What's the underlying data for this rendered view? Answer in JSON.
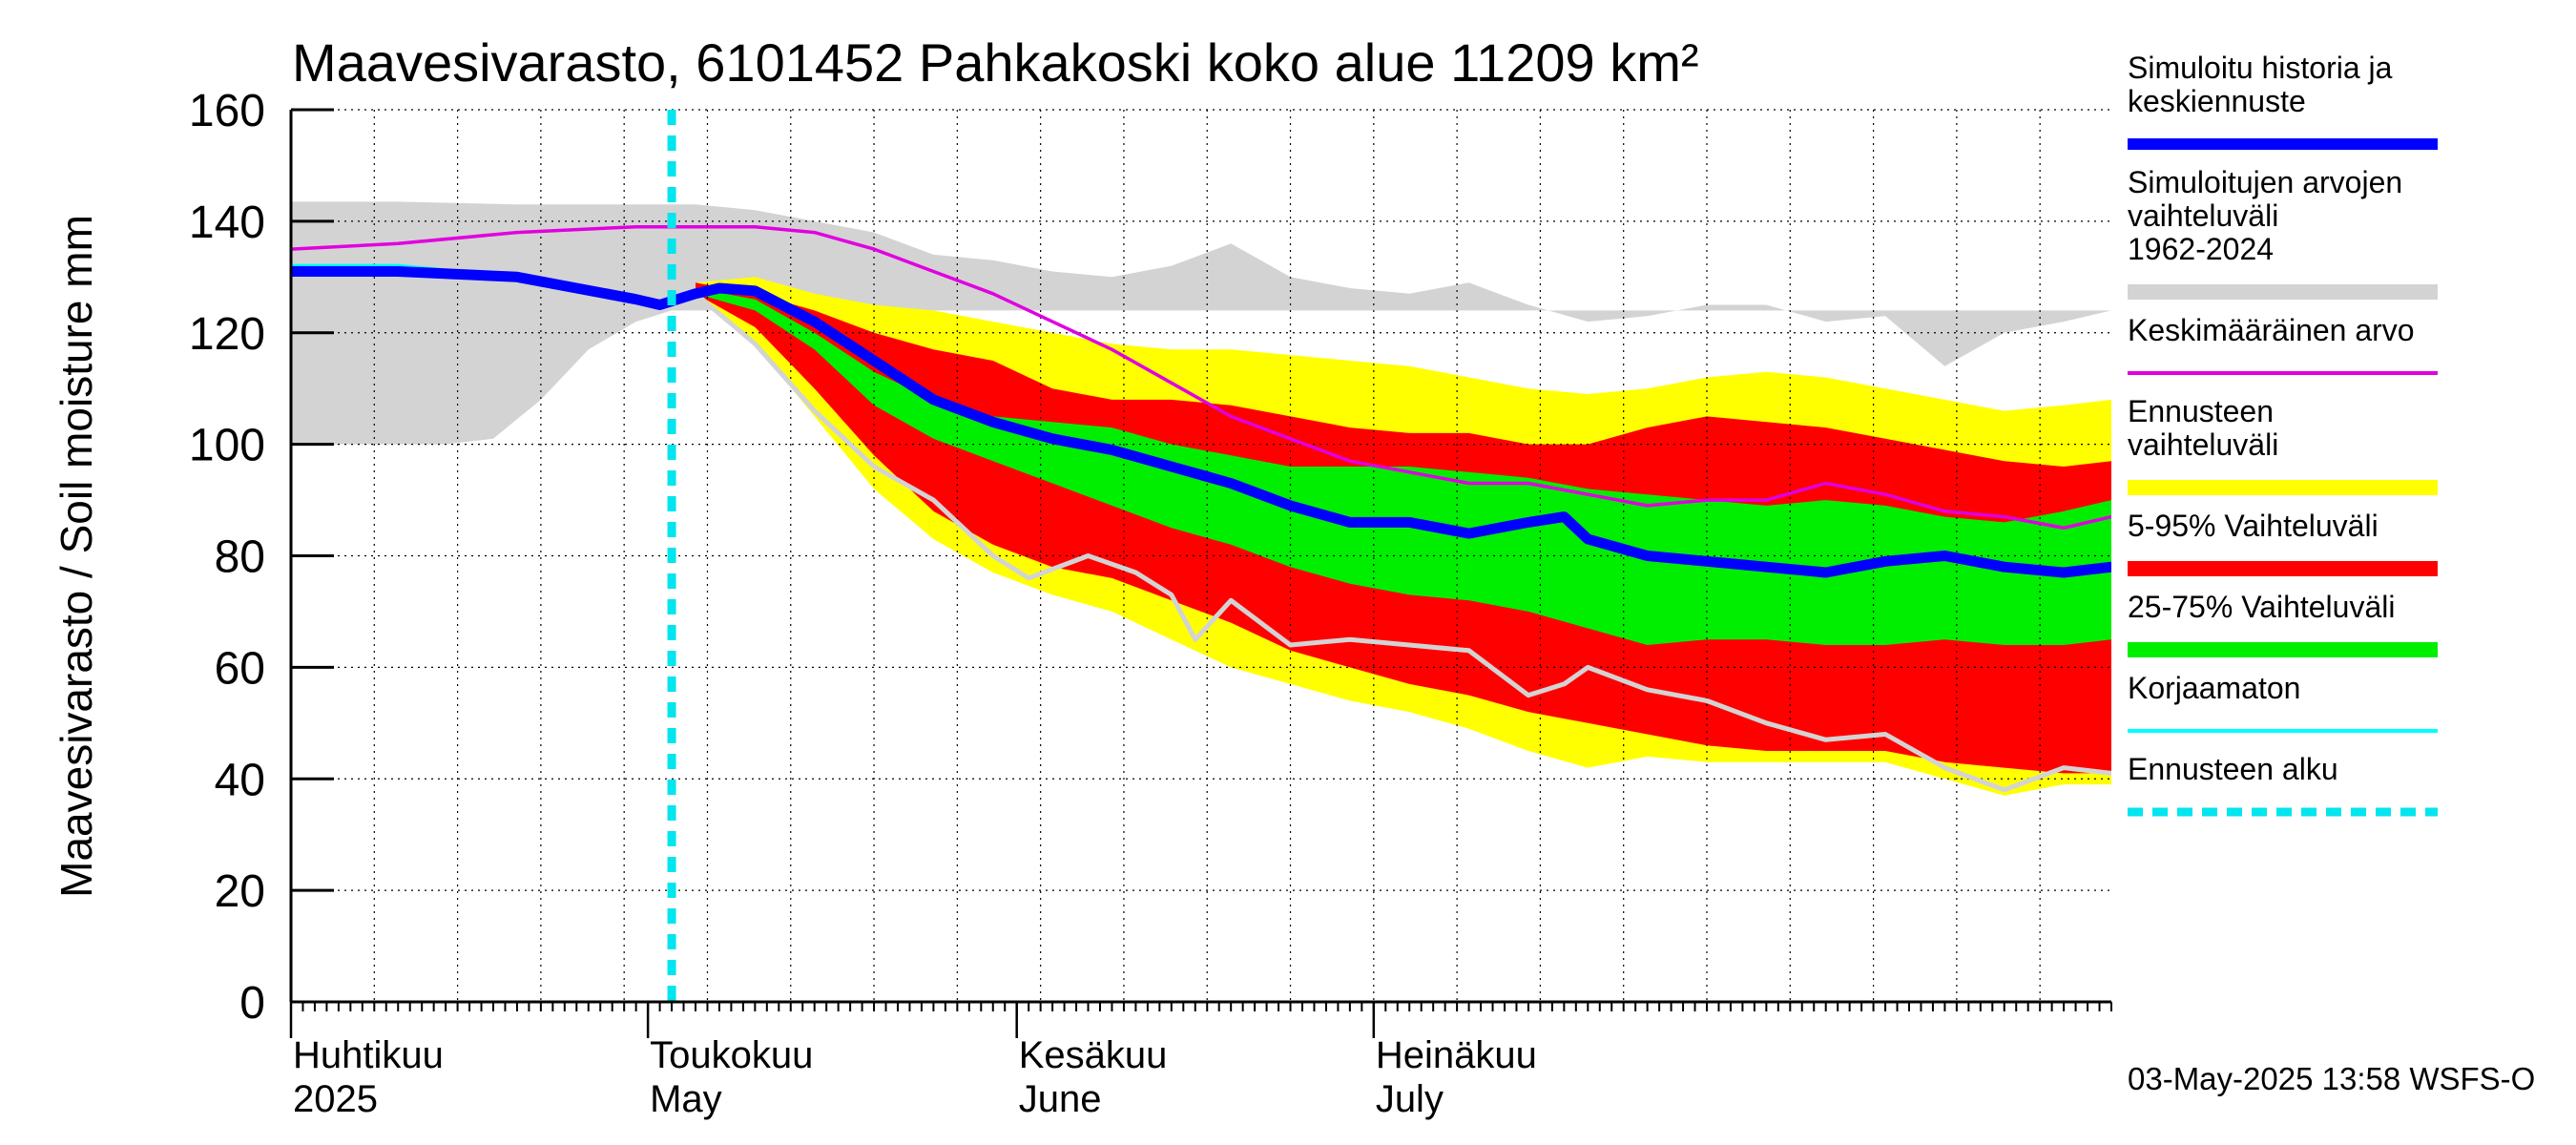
{
  "chart_data": {
    "type": "area",
    "title": "Maavesivarasto, 6101452 Pahkakoski koko alue 11209 km²",
    "ylabel": "Maavesivarasto / Soil moisture   mm",
    "xlabel": "",
    "ylim": [
      0,
      160
    ],
    "yticks": [
      0,
      20,
      40,
      60,
      80,
      100,
      120,
      140,
      160
    ],
    "x_unit": "day of year 2025",
    "xlim": [
      91,
      244
    ],
    "grid": true,
    "months": [
      {
        "fi": "Huhtikuu",
        "en": "2025",
        "day": 91
      },
      {
        "fi": "Toukokuu",
        "en": "May",
        "day": 121
      },
      {
        "fi": "Kesäkuu",
        "en": "June",
        "day": 152
      },
      {
        "fi": "Heinäkuu",
        "en": "July",
        "day": 182
      }
    ],
    "forecast_start_day": 123,
    "timestamp": "03-May-2025 13:58 WSFS-O",
    "legend": [
      {
        "label": "Simuloitu historia ja keskiennuste",
        "color": "#0000ff",
        "style": "thick"
      },
      {
        "label": "Simuloitujen arvojen vaihteluväli 1962-2024",
        "color": "#d3d3d3",
        "style": "band"
      },
      {
        "label": "Keskimääräinen arvo",
        "color": "#e000e0",
        "style": "thin"
      },
      {
        "label": "Ennusteen vaihteluväli",
        "color": "#ffff00",
        "style": "band"
      },
      {
        "label": "5-95% Vaihteluväli",
        "color": "#ff0000",
        "style": "band"
      },
      {
        "label": "25-75% Vaihteluväli",
        "color": "#00ee00",
        "style": "band"
      },
      {
        "label": "Korjaamaton",
        "color": "#00ffff",
        "style": "thin"
      },
      {
        "label": "Ennusteen alku",
        "color": "#00e5ee",
        "style": "dashed"
      }
    ],
    "series": [
      {
        "name": "Simuloitujen arvojen vaihteluväli 1962-2024 (upper)",
        "x": [
          91,
          100,
          110,
          120,
          125,
          130,
          135,
          140,
          145,
          150,
          155,
          160,
          165,
          170,
          175,
          180,
          185,
          190,
          195,
          200,
          205,
          210,
          215,
          220,
          225,
          230,
          235,
          240,
          244
        ],
        "values": [
          143.5,
          143.5,
          143,
          143,
          143,
          142,
          140,
          138,
          134,
          133,
          131,
          130,
          132,
          136,
          130,
          128,
          127,
          129,
          125,
          122,
          123,
          125,
          125,
          122,
          123,
          114,
          120,
          122,
          124
        ]
      },
      {
        "name": "Simuloitujen arvojen vaihteluväli 1962-2024 (lower)",
        "x": [
          91,
          98,
          104,
          108,
          112,
          116,
          120,
          123
        ],
        "values": [
          100,
          100,
          100,
          101,
          108,
          117,
          122,
          124
        ]
      },
      {
        "name": "Ennusteen vaihteluväli (upper)",
        "x": [
          125,
          130,
          135,
          140,
          145,
          150,
          155,
          160,
          165,
          170,
          175,
          180,
          185,
          190,
          195,
          200,
          205,
          210,
          215,
          220,
          225,
          230,
          235,
          240,
          244
        ],
        "values": [
          129,
          130,
          127,
          125,
          124,
          122,
          120,
          118,
          117,
          117,
          116,
          115,
          114,
          112,
          110,
          109,
          110,
          112,
          113,
          112,
          110,
          108,
          106,
          107,
          108
        ]
      },
      {
        "name": "Ennusteen vaihteluväli (lower)",
        "x": [
          125,
          130,
          135,
          140,
          145,
          150,
          155,
          160,
          165,
          170,
          175,
          180,
          185,
          190,
          195,
          200,
          205,
          210,
          215,
          220,
          225,
          230,
          235,
          240,
          244
        ],
        "values": [
          127,
          118,
          105,
          92,
          83,
          77,
          73,
          70,
          65,
          60,
          57,
          54,
          52,
          49,
          45,
          42,
          44,
          43,
          43,
          43,
          43,
          40,
          37,
          39,
          39
        ]
      },
      {
        "name": "5-95% Vaihteluväli (upper)",
        "x": [
          125,
          130,
          135,
          140,
          145,
          150,
          155,
          160,
          165,
          170,
          175,
          180,
          185,
          190,
          195,
          200,
          205,
          210,
          215,
          220,
          225,
          230,
          235,
          240,
          244
        ],
        "values": [
          129,
          127,
          124,
          120,
          117,
          115,
          110,
          108,
          108,
          107,
          105,
          103,
          102,
          102,
          100,
          100,
          103,
          105,
          104,
          103,
          101,
          99,
          97,
          96,
          97
        ]
      },
      {
        "name": "5-95% Vaihteluväli (lower)",
        "x": [
          125,
          130,
          135,
          140,
          145,
          150,
          155,
          160,
          165,
          170,
          175,
          180,
          185,
          190,
          195,
          200,
          205,
          210,
          215,
          220,
          225,
          230,
          235,
          240,
          244
        ],
        "values": [
          127,
          121,
          110,
          98,
          88,
          82,
          78,
          76,
          72,
          68,
          63,
          60,
          57,
          55,
          52,
          50,
          48,
          46,
          45,
          45,
          45,
          43,
          42,
          41,
          41
        ]
      },
      {
        "name": "25-75% Vaihteluväli (upper)",
        "x": [
          125,
          130,
          135,
          140,
          145,
          150,
          155,
          160,
          165,
          170,
          175,
          180,
          185,
          190,
          195,
          200,
          205,
          210,
          215,
          220,
          225,
          230,
          235,
          240,
          244
        ],
        "values": [
          128,
          126,
          120,
          113,
          108,
          105,
          104,
          103,
          100,
          98,
          96,
          96,
          96,
          95,
          94,
          92,
          91,
          90,
          89,
          90,
          89,
          87,
          86,
          88,
          90
        ]
      },
      {
        "name": "25-75% Vaihteluväli (lower)",
        "x": [
          125,
          130,
          135,
          140,
          145,
          150,
          155,
          160,
          165,
          170,
          175,
          180,
          185,
          190,
          195,
          200,
          205,
          210,
          215,
          220,
          225,
          230,
          235,
          240,
          244
        ],
        "values": [
          127,
          124,
          117,
          107,
          101,
          97,
          93,
          89,
          85,
          82,
          78,
          75,
          73,
          72,
          70,
          67,
          64,
          65,
          65,
          64,
          64,
          65,
          64,
          64,
          65
        ]
      },
      {
        "name": "Simuloitu historia ja keskiennuste",
        "x": [
          91,
          100,
          110,
          115,
          120,
          122,
          125,
          127,
          130,
          135,
          140,
          145,
          150,
          155,
          160,
          165,
          170,
          175,
          180,
          185,
          190,
          195,
          198,
          200,
          205,
          210,
          215,
          220,
          225,
          230,
          235,
          240,
          244
        ],
        "values": [
          131,
          131,
          130,
          128,
          126,
          125,
          127,
          128,
          127.5,
          122,
          115,
          108,
          104,
          101,
          99,
          96,
          93,
          89,
          86,
          86,
          84,
          86,
          87,
          83,
          80,
          79,
          78,
          77,
          79,
          80,
          78,
          77,
          78
        ]
      },
      {
        "name": "Keskimääräinen arvo",
        "x": [
          91,
          100,
          110,
          115,
          120,
          125,
          130,
          135,
          140,
          145,
          150,
          155,
          160,
          165,
          170,
          175,
          180,
          185,
          190,
          195,
          200,
          205,
          210,
          215,
          220,
          225,
          230,
          235,
          240,
          244
        ],
        "values": [
          135,
          136,
          138,
          138.5,
          139,
          139,
          139,
          138,
          135,
          131,
          127,
          122,
          117,
          111,
          105,
          101,
          97,
          95,
          93,
          93,
          91,
          89,
          90,
          90,
          93,
          91,
          88,
          87,
          85,
          87
        ]
      },
      {
        "name": "Korjaamaton",
        "x": [
          91,
          100,
          110,
          115,
          120,
          123
        ],
        "values": [
          132,
          132,
          130,
          128,
          126,
          125
        ]
      },
      {
        "name": "Lightgray scenario",
        "x": [
          125,
          130,
          135,
          140,
          145,
          150,
          153,
          158,
          162,
          165,
          167,
          170,
          175,
          180,
          185,
          190,
          195,
          198,
          200,
          205,
          210,
          215,
          220,
          225,
          230,
          235,
          240,
          244
        ],
        "values": [
          127,
          118,
          106,
          96,
          90,
          80,
          76,
          80,
          77,
          73,
          65,
          72,
          64,
          65,
          64,
          63,
          55,
          57,
          60,
          56,
          54,
          50,
          47,
          48,
          42,
          38,
          42,
          41
        ]
      }
    ]
  }
}
